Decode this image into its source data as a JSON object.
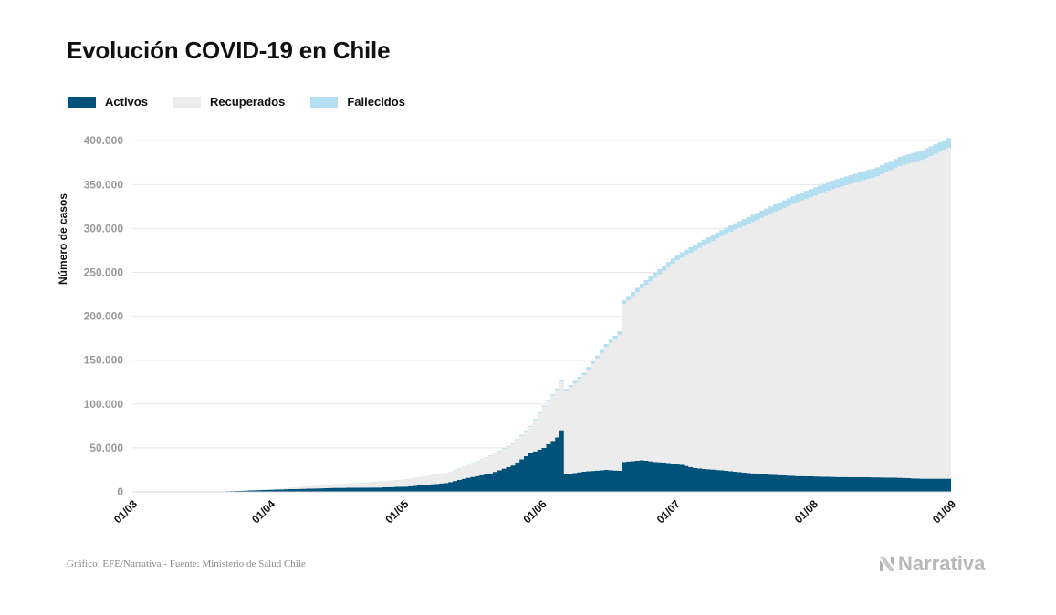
{
  "title": "Evolución COVID-19 en Chile",
  "legend": [
    {
      "label": "Activos",
      "color": "#01527b"
    },
    {
      "label": "Recuperados",
      "color": "#ececec"
    },
    {
      "label": "Fallecidos",
      "color": "#b3dff0"
    }
  ],
  "footer": "Gráfico: EFE/Narrativa - Fuente: Ministerio de Salud Chile",
  "logo_text": "Narrativa",
  "chart_data": {
    "type": "area",
    "ylabel": "Número de casos",
    "ylim": [
      0,
      420000
    ],
    "yticks": [
      0,
      50000,
      100000,
      150000,
      200000,
      250000,
      300000,
      350000,
      400000
    ],
    "ytick_labels": [
      "0",
      "50.000",
      "100.000",
      "150.000",
      "200.000",
      "250.000",
      "300.000",
      "350.000",
      "400.000"
    ],
    "xticks": [
      "2020-03-01",
      "2020-04-01",
      "2020-05-01",
      "2020-06-01",
      "2020-07-01",
      "2020-08-01",
      "2020-09-01"
    ],
    "xtick_labels": [
      "01/03",
      "01/04",
      "01/05",
      "01/06",
      "01/07",
      "01/08",
      "01/09"
    ],
    "xlim": [
      "2020-03-01",
      "2020-09-01"
    ],
    "grid": true,
    "stacked": true,
    "legend_position": "top-left",
    "series": [
      {
        "name": "Activos",
        "color": "#01527b",
        "points": [
          [
            "2020-03-01",
            0
          ],
          [
            "2020-03-20",
            300
          ],
          [
            "2020-04-01",
            2500
          ],
          [
            "2020-04-15",
            4500
          ],
          [
            "2020-04-25",
            5000
          ],
          [
            "2020-05-01",
            6000
          ],
          [
            "2020-05-10",
            10000
          ],
          [
            "2020-05-15",
            16000
          ],
          [
            "2020-05-20",
            21000
          ],
          [
            "2020-05-25",
            30000
          ],
          [
            "2020-05-29",
            44000
          ],
          [
            "2020-06-01",
            50000
          ],
          [
            "2020-06-04",
            62000
          ],
          [
            "2020-06-05",
            70000
          ],
          [
            "2020-06-06",
            20000
          ],
          [
            "2020-06-10",
            23000
          ],
          [
            "2020-06-15",
            25000
          ],
          [
            "2020-06-18",
            24000
          ],
          [
            "2020-06-19",
            34000
          ],
          [
            "2020-06-23",
            36000
          ],
          [
            "2020-06-26",
            34000
          ],
          [
            "2020-07-01",
            32000
          ],
          [
            "2020-07-05",
            27000
          ],
          [
            "2020-07-12",
            24000
          ],
          [
            "2020-07-20",
            20000
          ],
          [
            "2020-07-28",
            18000
          ],
          [
            "2020-08-05",
            17000
          ],
          [
            "2020-08-15",
            16500
          ],
          [
            "2020-08-20",
            16000
          ],
          [
            "2020-08-25",
            15000
          ],
          [
            "2020-09-01",
            15000
          ]
        ]
      },
      {
        "name": "Recuperados",
        "color": "#ececec",
        "points": [
          [
            "2020-03-01",
            0
          ],
          [
            "2020-03-20",
            0
          ],
          [
            "2020-04-01",
            500
          ],
          [
            "2020-04-15",
            4000
          ],
          [
            "2020-04-25",
            6500
          ],
          [
            "2020-05-01",
            8000
          ],
          [
            "2020-05-10",
            11000
          ],
          [
            "2020-05-15",
            14000
          ],
          [
            "2020-05-20",
            20000
          ],
          [
            "2020-05-25",
            24000
          ],
          [
            "2020-05-29",
            30000
          ],
          [
            "2020-06-01",
            47000
          ],
          [
            "2020-06-04",
            54000
          ],
          [
            "2020-06-05",
            56000
          ],
          [
            "2020-06-06",
            95000
          ],
          [
            "2020-06-10",
            110000
          ],
          [
            "2020-06-15",
            140000
          ],
          [
            "2020-06-18",
            155000
          ],
          [
            "2020-06-19",
            180000
          ],
          [
            "2020-06-23",
            196000
          ],
          [
            "2020-06-26",
            210000
          ],
          [
            "2020-07-01",
            232000
          ],
          [
            "2020-07-05",
            248000
          ],
          [
            "2020-07-12",
            270000
          ],
          [
            "2020-07-20",
            292000
          ],
          [
            "2020-07-28",
            312000
          ],
          [
            "2020-08-05",
            328000
          ],
          [
            "2020-08-15",
            343000
          ],
          [
            "2020-08-20",
            355000
          ],
          [
            "2020-08-25",
            363000
          ],
          [
            "2020-09-01",
            379000
          ]
        ]
      },
      {
        "name": "Fallecidos",
        "color": "#b3dff0",
        "points": [
          [
            "2020-03-01",
            0
          ],
          [
            "2020-03-20",
            0
          ],
          [
            "2020-04-01",
            30
          ],
          [
            "2020-04-15",
            100
          ],
          [
            "2020-04-25",
            200
          ],
          [
            "2020-05-01",
            250
          ],
          [
            "2020-05-10",
            350
          ],
          [
            "2020-05-15",
            450
          ],
          [
            "2020-05-20",
            600
          ],
          [
            "2020-05-25",
            800
          ],
          [
            "2020-05-29",
            1000
          ],
          [
            "2020-06-01",
            1300
          ],
          [
            "2020-06-04",
            1600
          ],
          [
            "2020-06-05",
            1800
          ],
          [
            "2020-06-06",
            2000
          ],
          [
            "2020-06-10",
            2600
          ],
          [
            "2020-06-15",
            3400
          ],
          [
            "2020-06-18",
            3700
          ],
          [
            "2020-06-19",
            4500
          ],
          [
            "2020-06-23",
            5000
          ],
          [
            "2020-06-26",
            5500
          ],
          [
            "2020-07-01",
            6000
          ],
          [
            "2020-07-05",
            6600
          ],
          [
            "2020-07-12",
            7000
          ],
          [
            "2020-07-20",
            8500
          ],
          [
            "2020-07-28",
            9000
          ],
          [
            "2020-08-05",
            9800
          ],
          [
            "2020-08-15",
            10300
          ],
          [
            "2020-08-20",
            10600
          ],
          [
            "2020-08-25",
            11000
          ],
          [
            "2020-09-01",
            11300
          ]
        ]
      }
    ]
  }
}
